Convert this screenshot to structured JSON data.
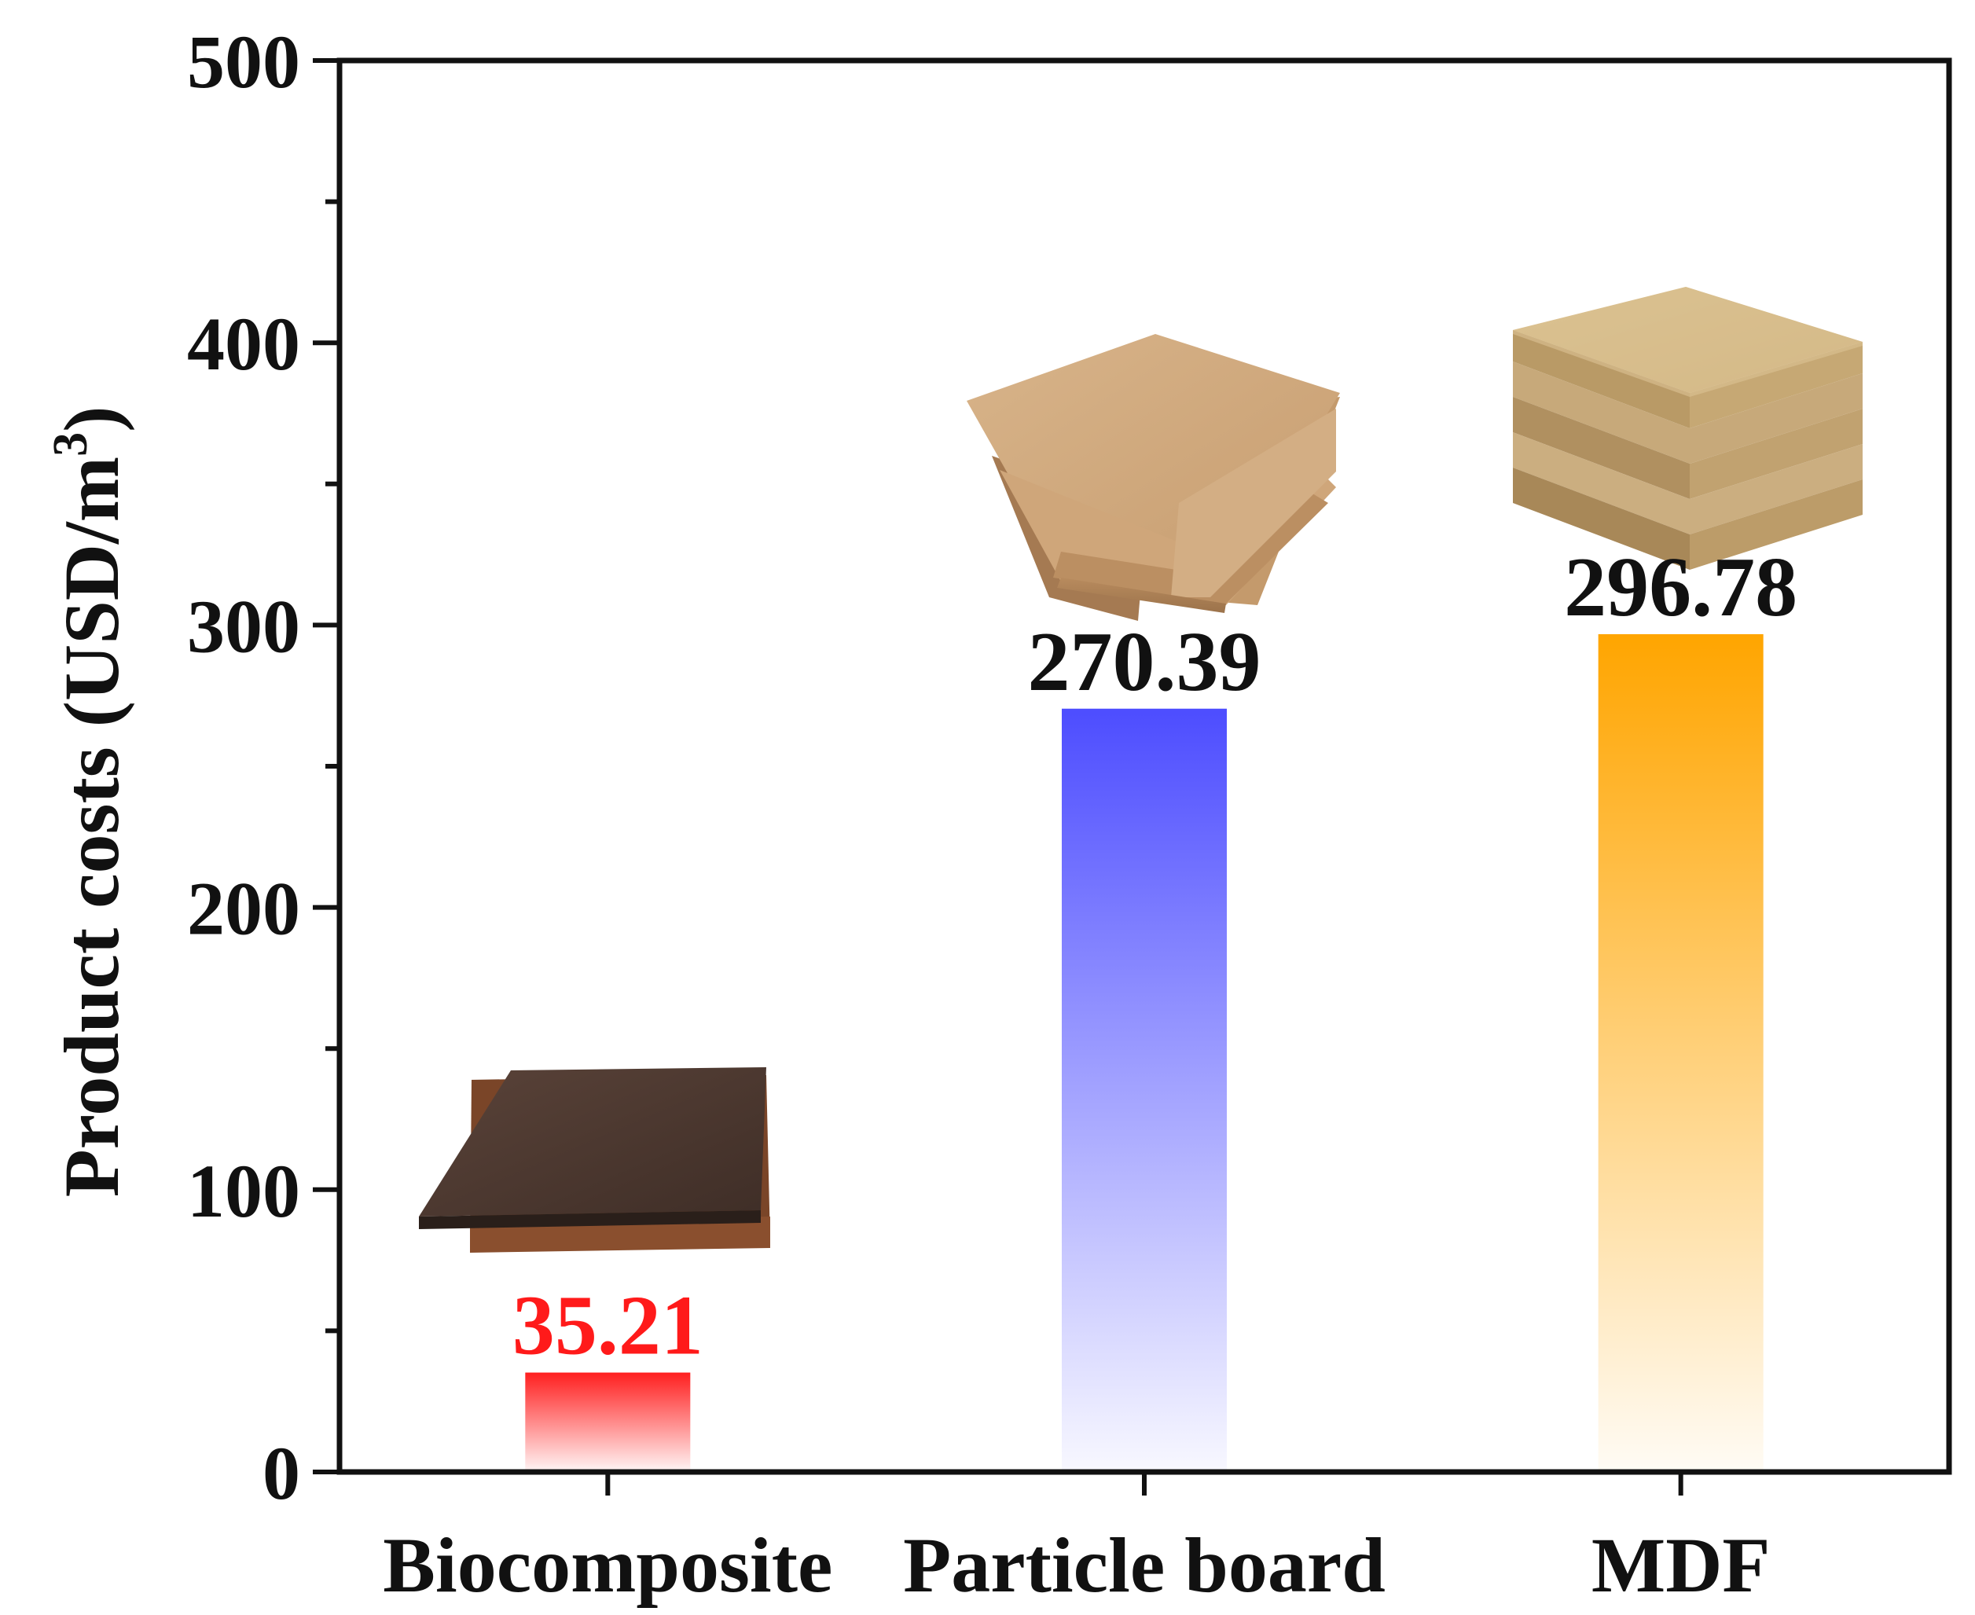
{
  "chart_data": {
    "type": "bar",
    "title": "",
    "xlabel": "",
    "ylabel": "Product costs (USD/m",
    "ylabel_superscript": "3",
    "ylabel_close": ")",
    "categories": [
      "Biocomposite",
      "Particle board",
      "MDF"
    ],
    "values": [
      35.21,
      270.39,
      296.78
    ],
    "value_labels": [
      "35.21",
      "270.39",
      "296.78"
    ],
    "ylim": [
      0,
      500
    ],
    "y_ticks": [
      0,
      100,
      200,
      300,
      400,
      500
    ],
    "y_tick_labels": [
      "0",
      "100",
      "200",
      "300",
      "400",
      "500"
    ],
    "y_minor_step": 50,
    "grid": false,
    "legend": "none"
  },
  "colors": {
    "bars": [
      "#ff1f1f",
      "#4d4dff",
      "#ffa500"
    ],
    "value_label_colors": [
      "#ff1a1a",
      "#111111",
      "#111111"
    ],
    "axis": "#111111"
  },
  "icons": [
    "biocomposite-board-image",
    "particle-board-image",
    "mdf-board-stack-image"
  ]
}
